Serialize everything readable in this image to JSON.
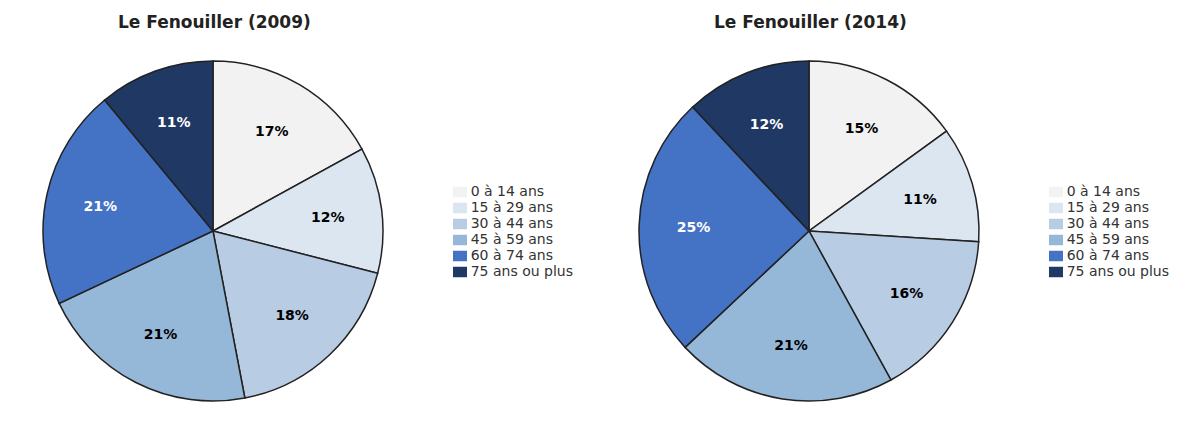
{
  "chart_data": [
    {
      "type": "pie",
      "title": "Le Fenouiller (2009)",
      "categories": [
        "0 à 14 ans",
        "15 à 29 ans",
        "30 à 44 ans",
        "45 à 59 ans",
        "60 à 74 ans",
        "75 ans ou plus"
      ],
      "values": [
        17,
        12,
        18,
        21,
        21,
        11
      ],
      "value_labels": [
        "17%",
        "12%",
        "18%",
        "21%",
        "21%",
        "11%"
      ],
      "colors": [
        "#f2f2f2",
        "#dce6f1",
        "#b8cce4",
        "#95b8d9",
        "#4472c4",
        "#1f3864"
      ],
      "data_labels": true,
      "legend": "right"
    },
    {
      "type": "pie",
      "title": "Le Fenouiller (2014)",
      "categories": [
        "0 à 14 ans",
        "15 à 29 ans",
        "30 à 44 ans",
        "45 à 59 ans",
        "60 à 74 ans",
        "75 ans ou plus"
      ],
      "values": [
        15,
        11,
        16,
        21,
        25,
        12
      ],
      "value_labels": [
        "15%",
        "11%",
        "16%",
        "21%",
        "25%",
        "12%"
      ],
      "colors": [
        "#f2f2f2",
        "#dce6f1",
        "#b8cce4",
        "#95b8d9",
        "#4472c4",
        "#1f3864"
      ],
      "data_labels": true,
      "legend": "right"
    }
  ]
}
